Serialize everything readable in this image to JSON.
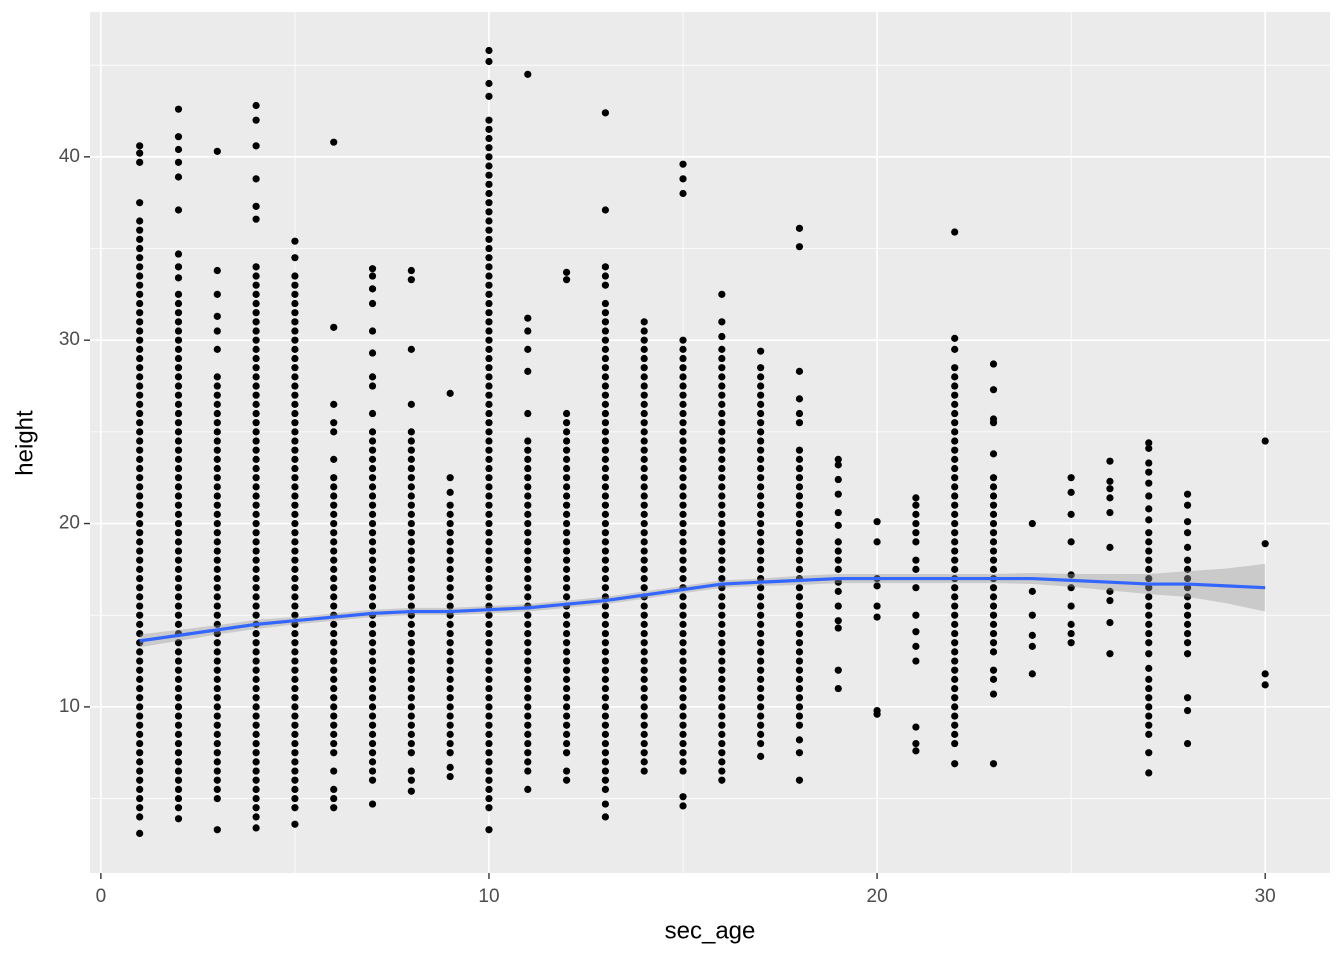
{
  "chart_data": {
    "type": "scatter",
    "x_label": "sec_age",
    "y_label": "height",
    "xlim": [
      -0.28,
      31.67
    ],
    "ylim": [
      0.94,
      47.9
    ],
    "xticks": [
      0,
      10,
      20,
      30
    ],
    "yticks": [
      10,
      20,
      30,
      40
    ],
    "xminor": [
      5,
      15,
      25
    ],
    "yminor": [
      5,
      15,
      25,
      35,
      45
    ],
    "grid": true,
    "background": "#ebebeb",
    "color": "#000000",
    "x": [
      1,
      2,
      3,
      4,
      5,
      6,
      7,
      8,
      9,
      10,
      11,
      12,
      13,
      14,
      15,
      16,
      17,
      18,
      19,
      20,
      21,
      22,
      23,
      24,
      25,
      26,
      27,
      28,
      30
    ],
    "values": [
      [
        3.1,
        4,
        4.5,
        5,
        5.5,
        6,
        6.5,
        7,
        7.5,
        8,
        8.5,
        9,
        9.5,
        10,
        10.5,
        11,
        11.5,
        12,
        12.5,
        13,
        13.5,
        14,
        14.5,
        15,
        15.5,
        16,
        16.5,
        17,
        17.5,
        18,
        18.5,
        19,
        19.5,
        20,
        20.5,
        21,
        21.5,
        22,
        22.5,
        23,
        23.5,
        24,
        24.5,
        25,
        25.5,
        26,
        26.5,
        27,
        27.5,
        28,
        28.5,
        29,
        29.5,
        30,
        30.5,
        31,
        31.5,
        32,
        32.5,
        33,
        33.5,
        34,
        34.5,
        35,
        35.5,
        36,
        36.5,
        37.5,
        39.7,
        40.2,
        40.6
      ],
      [
        3.9,
        4.5,
        5,
        5.5,
        6,
        6.5,
        7,
        7.5,
        8,
        8.5,
        9,
        9.5,
        10,
        10.5,
        11,
        11.5,
        12,
        12.5,
        13,
        13.5,
        14,
        14.5,
        15,
        15.5,
        16,
        16.5,
        17,
        17.5,
        18,
        18.5,
        19,
        19.5,
        20,
        20.5,
        21,
        21.5,
        22,
        22.5,
        23,
        23.5,
        24,
        24.5,
        25,
        25.5,
        26,
        26.5,
        27,
        27.5,
        28,
        28.5,
        29,
        29.5,
        30,
        30.5,
        31,
        31.5,
        32,
        32.5,
        33.4,
        34,
        34.7,
        37.1,
        38.9,
        39.7,
        40.4,
        41.1,
        42.6
      ],
      [
        3.3,
        5,
        5.5,
        6,
        6.5,
        7,
        7.5,
        8,
        8.5,
        9,
        9.5,
        10,
        10.5,
        11,
        11.5,
        12,
        12.5,
        13,
        13.5,
        14,
        14.5,
        15,
        15.5,
        16,
        16.5,
        17,
        17.5,
        18,
        18.5,
        19,
        19.5,
        20,
        20.5,
        21,
        21.5,
        22,
        22.5,
        23,
        23.5,
        24,
        24.5,
        25,
        25.5,
        26,
        26.5,
        27,
        27.5,
        28,
        29.5,
        30.5,
        31.3,
        32.5,
        33.8,
        40.3
      ],
      [
        3.4,
        4,
        4.5,
        5,
        5.5,
        6,
        6.5,
        7,
        7.5,
        8,
        8.5,
        9,
        9.5,
        10,
        10.5,
        11,
        11.5,
        12,
        12.5,
        13,
        13.5,
        14,
        14.5,
        15,
        15.5,
        16,
        16.5,
        17,
        17.5,
        18,
        18.5,
        19,
        19.5,
        20,
        20.5,
        21,
        21.5,
        22,
        22.5,
        23,
        23.5,
        24,
        24.5,
        25,
        25.5,
        26,
        26.5,
        27,
        27.5,
        28,
        28.5,
        29,
        29.5,
        30,
        30.5,
        31,
        31.5,
        32,
        32.5,
        33,
        33.5,
        34,
        36.6,
        37.3,
        38.8,
        40.6,
        42,
        42.8
      ],
      [
        3.6,
        4.5,
        5,
        5.5,
        6,
        6.5,
        7,
        7.5,
        8,
        8.5,
        9,
        9.5,
        10,
        10.5,
        11,
        11.5,
        12,
        12.5,
        13,
        13.5,
        14,
        14.5,
        15,
        15.5,
        16,
        16.5,
        17,
        17.5,
        18,
        18.5,
        19,
        19.5,
        20,
        20.5,
        21,
        21.5,
        22,
        22.5,
        23,
        23.5,
        24,
        24.5,
        25,
        25.5,
        26,
        26.5,
        27,
        27.5,
        28,
        28.5,
        29,
        29.5,
        30,
        30.5,
        31,
        31.5,
        32,
        32.5,
        33,
        33.5,
        34.5,
        35.4
      ],
      [
        4.5,
        5,
        5.5,
        6.5,
        7.5,
        8,
        8.5,
        9,
        9.5,
        10,
        10.5,
        11,
        11.5,
        12,
        12.5,
        13,
        13.5,
        14,
        14.5,
        15,
        15.5,
        16,
        16.5,
        17,
        17.5,
        18,
        18.5,
        19,
        19.5,
        20,
        20.5,
        21,
        21.5,
        22,
        22.5,
        23.5,
        25,
        25.5,
        26.5,
        30.7,
        40.8
      ],
      [
        4.7,
        6,
        6.5,
        7,
        7.5,
        8,
        8.5,
        9,
        9.5,
        10,
        10.5,
        11,
        11.5,
        12,
        12.5,
        13,
        13.5,
        14,
        14.5,
        15,
        15.5,
        16,
        16.5,
        17,
        17.5,
        18,
        18.5,
        19,
        19.5,
        20,
        20.5,
        21,
        21.5,
        22,
        22.5,
        23,
        23.5,
        24,
        24.5,
        25,
        26,
        27.5,
        28,
        29.3,
        30.5,
        32,
        32.8,
        33.5,
        33.9
      ],
      [
        5.4,
        6,
        6.5,
        7.5,
        8,
        8.5,
        9,
        9.5,
        10,
        10.5,
        11,
        11.5,
        12,
        12.5,
        13,
        13.5,
        14,
        14.5,
        15,
        15.5,
        16,
        16.5,
        17,
        17.5,
        18,
        18.5,
        19,
        19.5,
        20,
        20.5,
        21,
        21.5,
        22,
        22.5,
        23,
        23.5,
        24,
        24.5,
        25,
        26.5,
        29.5,
        33.3,
        33.8
      ],
      [
        6.2,
        6.7,
        7.5,
        8,
        8.5,
        9,
        9.5,
        10,
        10.5,
        11,
        11.5,
        12,
        12.5,
        13,
        13.5,
        14,
        14.5,
        15,
        15.5,
        16,
        16.5,
        17,
        17.5,
        18,
        18.5,
        19,
        19.5,
        20,
        20.5,
        21,
        21.7,
        22.5,
        27.1
      ],
      [
        3.3,
        4.5,
        5,
        5.5,
        6,
        6.5,
        7,
        7.5,
        8,
        8.5,
        9,
        9.5,
        10,
        10.5,
        11,
        11.5,
        12,
        12.5,
        13,
        13.5,
        14,
        14.5,
        15,
        15.5,
        16,
        16.5,
        17,
        17.5,
        18,
        18.5,
        19,
        19.5,
        20,
        20.5,
        21,
        21.5,
        22,
        22.5,
        23,
        23.5,
        24,
        24.5,
        25,
        25.5,
        26,
        26.5,
        27,
        27.5,
        28,
        28.5,
        29,
        29.5,
        30,
        30.5,
        31,
        31.5,
        32,
        32.5,
        33,
        33.5,
        34,
        34.5,
        35,
        35.5,
        36,
        36.5,
        37,
        37.5,
        38,
        38.5,
        39,
        39.5,
        40,
        40.5,
        41,
        41.5,
        42,
        43.3,
        44,
        45.2,
        45.8
      ],
      [
        5.5,
        6.5,
        7,
        7.5,
        8,
        8.5,
        9,
        9.5,
        10,
        10.5,
        11,
        11.5,
        12,
        12.5,
        13,
        13.5,
        14,
        14.5,
        15,
        15.5,
        16,
        16.5,
        17,
        17.5,
        18,
        18.5,
        19,
        19.5,
        20,
        20.5,
        21,
        21.5,
        22,
        22.5,
        23,
        23.5,
        24,
        24.5,
        26,
        28.3,
        29.5,
        30.5,
        31.2,
        44.5
      ],
      [
        6,
        6.5,
        7.5,
        8,
        8.5,
        9,
        9.5,
        10,
        10.5,
        11,
        11.5,
        12,
        12.5,
        13,
        13.5,
        14,
        14.5,
        15,
        15.5,
        16,
        16.5,
        17,
        17.5,
        18,
        18.5,
        19,
        19.5,
        20,
        20.5,
        21,
        21.5,
        22,
        22.5,
        23,
        23.5,
        24,
        24.5,
        25,
        25.5,
        26,
        33.3,
        33.7
      ],
      [
        4,
        4.7,
        5.5,
        6,
        6.5,
        7,
        7.5,
        8,
        8.5,
        9,
        9.5,
        10,
        10.5,
        11,
        11.5,
        12,
        12.5,
        13,
        13.5,
        14,
        14.5,
        15,
        15.5,
        16,
        16.5,
        17,
        17.5,
        18,
        18.5,
        19,
        19.5,
        20,
        20.5,
        21,
        21.5,
        22,
        22.5,
        23,
        23.5,
        24,
        24.5,
        25,
        25.5,
        26,
        26.5,
        27,
        27.5,
        28,
        28.5,
        29,
        29.5,
        30,
        30.5,
        31,
        31.5,
        32,
        33,
        33.5,
        34,
        37.1,
        42.4
      ],
      [
        6.5,
        7,
        7.5,
        8,
        8.5,
        9,
        9.5,
        10,
        10.5,
        11,
        11.5,
        12,
        12.5,
        13,
        13.5,
        14,
        14.5,
        15,
        15.5,
        16,
        16.5,
        17,
        17.5,
        18,
        18.5,
        19,
        19.5,
        20,
        20.5,
        21,
        21.5,
        22,
        22.5,
        23,
        23.5,
        24,
        24.5,
        25,
        25.5,
        26,
        26.5,
        27,
        27.5,
        28,
        28.5,
        29,
        29.5,
        30,
        30.5,
        31
      ],
      [
        4.6,
        5.1,
        6.5,
        7,
        7.5,
        8,
        8.5,
        9,
        9.5,
        10,
        10.5,
        11,
        11.5,
        12,
        12.5,
        13,
        13.5,
        14,
        14.5,
        15,
        15.5,
        16,
        16.5,
        17,
        17.5,
        18,
        18.5,
        19,
        19.5,
        20,
        20.5,
        21,
        21.5,
        22,
        22.5,
        23,
        23.5,
        24,
        24.5,
        25,
        25.5,
        26,
        26.5,
        27,
        27.5,
        28,
        28.5,
        29,
        29.5,
        30,
        38,
        38.8,
        39.6
      ],
      [
        6,
        6.5,
        7,
        7.5,
        8,
        8.5,
        9,
        9.5,
        10,
        10.5,
        11,
        11.5,
        12,
        12.5,
        13,
        13.5,
        14,
        14.5,
        15,
        15.5,
        16,
        16.5,
        17,
        17.5,
        18,
        18.5,
        19,
        19.5,
        20,
        20.5,
        21,
        21.5,
        22,
        22.5,
        23,
        23.5,
        24,
        24.5,
        25,
        25.5,
        26,
        26.5,
        27,
        27.5,
        28,
        28.5,
        29,
        29.5,
        30.2,
        31,
        32.5
      ],
      [
        7.3,
        8,
        8.5,
        9,
        9.5,
        10,
        10.5,
        11,
        11.5,
        12,
        12.5,
        13,
        13.5,
        14,
        14.5,
        15,
        15.5,
        16,
        16.5,
        17,
        17.5,
        18,
        18.5,
        19,
        19.5,
        20,
        20.5,
        21,
        21.5,
        22,
        22.5,
        23,
        23.5,
        24,
        24.5,
        25,
        25.5,
        26,
        26.5,
        27,
        27.5,
        28,
        28.5,
        29.4
      ],
      [
        6,
        7.5,
        8.2,
        9,
        9.5,
        10,
        10.5,
        11,
        11.5,
        12,
        12.5,
        13,
        13.5,
        14,
        14.5,
        15,
        15.5,
        16,
        16.5,
        17,
        17.5,
        18,
        18.5,
        19,
        19.5,
        20,
        20.5,
        21,
        21.5,
        22,
        22.5,
        23,
        23.5,
        24,
        25.5,
        26,
        26.8,
        28.3,
        35.1,
        36.1
      ],
      [
        11,
        12,
        14.3,
        14.7,
        15.5,
        16.3,
        16.8,
        17.5,
        18,
        18.5,
        19,
        19.9,
        20.6,
        21.6,
        22.4,
        23.2,
        23.5
      ],
      [
        9.6,
        9.8,
        14.9,
        15.5,
        16.6,
        17,
        19,
        20.1
      ],
      [
        7.6,
        8,
        8.9,
        12.5,
        13.3,
        14.1,
        15,
        16.5,
        17.5,
        18,
        19,
        19.5,
        20,
        20.5,
        21,
        21.4
      ],
      [
        6.9,
        8,
        8.5,
        9,
        9.5,
        10,
        10.5,
        11,
        11.5,
        12,
        12.5,
        13,
        13.5,
        14,
        14.5,
        15,
        15.5,
        16,
        16.5,
        17,
        17.5,
        18,
        18.5,
        19,
        19.5,
        20,
        20.5,
        21,
        21.5,
        22,
        22.5,
        23,
        23.5,
        24,
        24.5,
        25,
        25.5,
        26,
        26.5,
        27,
        27.5,
        28,
        28.5,
        29.5,
        30.1,
        35.9
      ],
      [
        6.9,
        10.7,
        11.5,
        12,
        13,
        13.5,
        14,
        14.5,
        15,
        15.5,
        16,
        16.5,
        17,
        17.5,
        18,
        18.5,
        19,
        19.5,
        20,
        20.5,
        21,
        21.5,
        22,
        22.5,
        23.8,
        25.5,
        25.7,
        27.3,
        28.7
      ],
      [
        11.8,
        13.3,
        13.9,
        15,
        16.3,
        20
      ],
      [
        13.5,
        14,
        14.5,
        15.5,
        16.5,
        17.2,
        19,
        20.5,
        21.7,
        22.5
      ],
      [
        12.9,
        14.6,
        15.8,
        16.3,
        18.7,
        20.6,
        21.4,
        21.9,
        22.3,
        23.4
      ],
      [
        6.4,
        7.5,
        8.5,
        9,
        9.5,
        10,
        10.5,
        11,
        11.5,
        12.1,
        12.9,
        13.5,
        14,
        14.5,
        15,
        15.5,
        16,
        16.5,
        17,
        17.5,
        18,
        18.5,
        19,
        19.5,
        20.2,
        20.8,
        21.5,
        22.2,
        22.8,
        23.3,
        24.1,
        24.4
      ],
      [
        8,
        9.8,
        10.5,
        12.9,
        13.5,
        14,
        14.5,
        15,
        15.5,
        16,
        16.5,
        17,
        17.5,
        18,
        18.7,
        19.5,
        20.1,
        21,
        21.6
      ],
      [
        11.2,
        11.8,
        18.9,
        24.5
      ]
    ],
    "smooth": {
      "color": "#3366ff",
      "band_color": "#999999",
      "x": [
        1,
        2,
        3,
        4,
        5,
        6,
        7,
        8,
        9,
        10,
        11,
        12,
        13,
        14,
        15,
        16,
        17,
        18,
        19,
        20,
        21,
        22,
        23,
        24,
        25,
        26,
        27,
        28,
        29,
        30
      ],
      "values": [
        13.6,
        13.9,
        14.2,
        14.5,
        14.7,
        14.9,
        15.1,
        15.2,
        15.2,
        15.3,
        15.4,
        15.6,
        15.8,
        16.1,
        16.4,
        16.7,
        16.8,
        16.9,
        17.0,
        17.0,
        17.0,
        17.0,
        17.0,
        17.0,
        16.9,
        16.8,
        16.7,
        16.7,
        16.6,
        16.5
      ],
      "lower": [
        13.25,
        13.6,
        13.95,
        14.25,
        14.5,
        14.7,
        14.9,
        15.0,
        15.0,
        15.1,
        15.2,
        15.4,
        15.6,
        15.9,
        16.2,
        16.5,
        16.6,
        16.65,
        16.75,
        16.75,
        16.75,
        16.75,
        16.75,
        16.7,
        16.55,
        16.35,
        16.15,
        16.0,
        15.65,
        15.2
      ],
      "upper": [
        13.95,
        14.2,
        14.45,
        14.75,
        14.9,
        15.1,
        15.3,
        15.4,
        15.4,
        15.5,
        15.6,
        15.8,
        16.0,
        16.3,
        16.6,
        16.9,
        17.0,
        17.15,
        17.25,
        17.25,
        17.25,
        17.25,
        17.25,
        17.3,
        17.25,
        17.25,
        17.25,
        17.4,
        17.55,
        17.8
      ]
    }
  }
}
